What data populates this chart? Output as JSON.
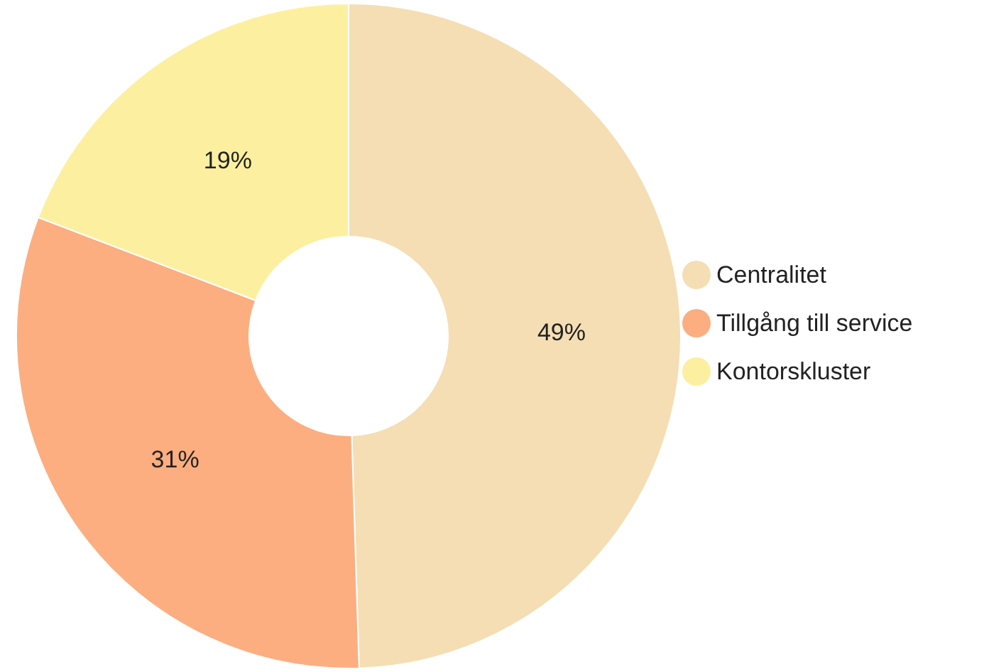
{
  "chart_data": {
    "type": "donut",
    "categories": [
      "Centralitet",
      "Tillgång till service",
      "Kontorskluster"
    ],
    "values": [
      49,
      31,
      19
    ],
    "colors": [
      "#f5deb3",
      "#fcae80",
      "#fcf0a0"
    ],
    "value_labels": [
      "49%",
      "31%",
      "19%"
    ],
    "legend": "right"
  }
}
